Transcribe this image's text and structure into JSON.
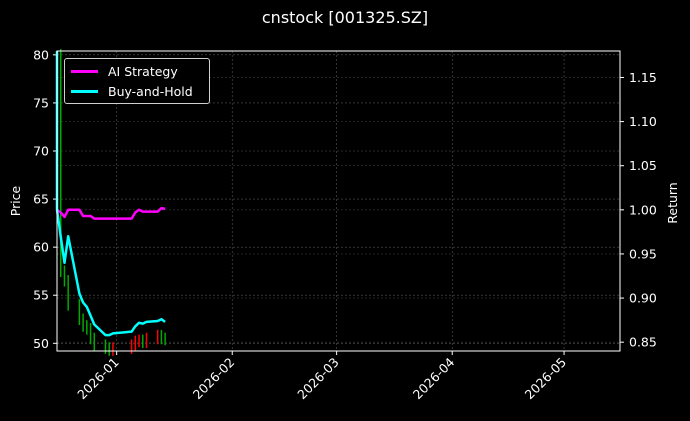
{
  "title": "cnstock [001325.SZ]",
  "legend": [
    {
      "label": "AI Strategy",
      "color": "#ff00ff"
    },
    {
      "label": "Buy-and-Hold",
      "color": "#00ffff"
    }
  ],
  "axes": {
    "left_label": "Price",
    "right_label": "Return",
    "left_ticks": [
      "50",
      "55",
      "60",
      "65",
      "70",
      "75",
      "80"
    ],
    "right_ticks": [
      "0.85",
      "0.90",
      "0.95",
      "1.00",
      "1.05",
      "1.10",
      "1.15"
    ],
    "x_ticks": [
      "2026-01",
      "2026-02",
      "2026-03",
      "2026-04",
      "2026-05"
    ]
  },
  "chart_data": {
    "type": "line",
    "title": "cnstock [001325.SZ]",
    "xlabel": "",
    "ylabel": "Price",
    "ylabel_right": "Return",
    "ylim": [
      49.2,
      80.4
    ],
    "ylim_right": [
      0.84,
      1.18
    ],
    "xlim": [
      "2025-12-16",
      "2026-05-16"
    ],
    "grid": true,
    "legend_position": "upper left",
    "x": [
      "2025-12-16",
      "2025-12-17",
      "2025-12-18",
      "2025-12-19",
      "2025-12-22",
      "2025-12-23",
      "2025-12-24",
      "2025-12-25",
      "2025-12-26",
      "2025-12-29",
      "2025-12-30",
      "2025-12-31",
      "2026-01-05",
      "2026-01-06",
      "2026-01-07",
      "2026-01-08",
      "2026-01-09",
      "2026-01-12",
      "2026-01-13",
      "2026-01-14"
    ],
    "series": [
      {
        "name": "AI Strategy",
        "axis": "right",
        "color": "#ff00ff",
        "values": [
          1.0,
          0.997,
          0.992,
          1.0,
          1.0,
          0.993,
          0.993,
          0.993,
          0.99,
          0.99,
          0.99,
          0.99,
          0.99,
          0.997,
          1.0,
          0.998,
          0.998,
          0.998,
          1.002,
          1.001
        ]
      },
      {
        "name": "Buy-and-Hold",
        "axis": "right",
        "color": "#00ffff",
        "values": [
          1.0,
          0.97,
          0.94,
          0.97,
          0.905,
          0.895,
          0.89,
          0.88,
          0.87,
          0.858,
          0.858,
          0.86,
          0.862,
          0.868,
          0.872,
          0.871,
          0.873,
          0.874,
          0.876,
          0.873
        ]
      },
      {
        "name": "Price candles",
        "axis": "left",
        "type": "candlestick",
        "up_color": "#ff0000",
        "down_color": "#00aa00",
        "values_close": [
          80.0,
          57.5,
          56.5,
          54.0,
          52.5,
          51.8,
          51.5,
          50.5,
          49.8,
          49.5,
          49.3,
          49.5,
          49.8,
          50.2,
          50.3,
          50.1,
          50.5,
          50.8,
          50.5,
          50.4
        ]
      }
    ]
  }
}
